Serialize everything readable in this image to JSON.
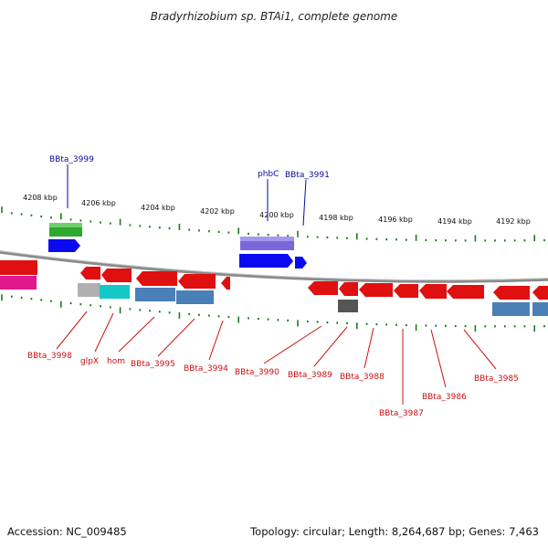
{
  "title": "Bradyrhizobium sp. BTAi1, complete genome",
  "footer": {
    "accession": "Accession: NC_009485",
    "summary": "Topology: circular; Length: 8,264,687 bp; Genes: 7,463"
  },
  "ruler_labels": [
    "4208 kbp",
    "4206 kbp",
    "4204 kbp",
    "4202 kbp",
    "4200 kbp",
    "4198 kbp",
    "4196 kbp",
    "4194 kbp",
    "4192 kbp"
  ],
  "upper_gene_labels": [
    "BBta_3999",
    "phbC",
    "BBta_3991"
  ],
  "lower_gene_labels": [
    "BBta_3998",
    "glpX",
    "hom",
    "BBta_3995",
    "BBta_3994",
    "BBta_3990",
    "BBta_3989",
    "BBta_3988",
    "BBta_3987",
    "BBta_3986",
    "BBta_3985"
  ],
  "colors": {
    "backbone": "#8a8a8a",
    "tick": "#1f7a1f",
    "label_blue": "#0a0a9a",
    "label_red": "#cc1010",
    "gene_red": "#e01010",
    "gene_blue": "#0a0af0",
    "gene_green": "#2fa82f",
    "gene_purple": "#7b68d8",
    "gene_steel": "#4a7fb8",
    "gene_cyan": "#14c8c8",
    "gene_pink": "#e0188c",
    "gene_gray": "#b0b0b0",
    "gene_darkgray": "#555555"
  }
}
